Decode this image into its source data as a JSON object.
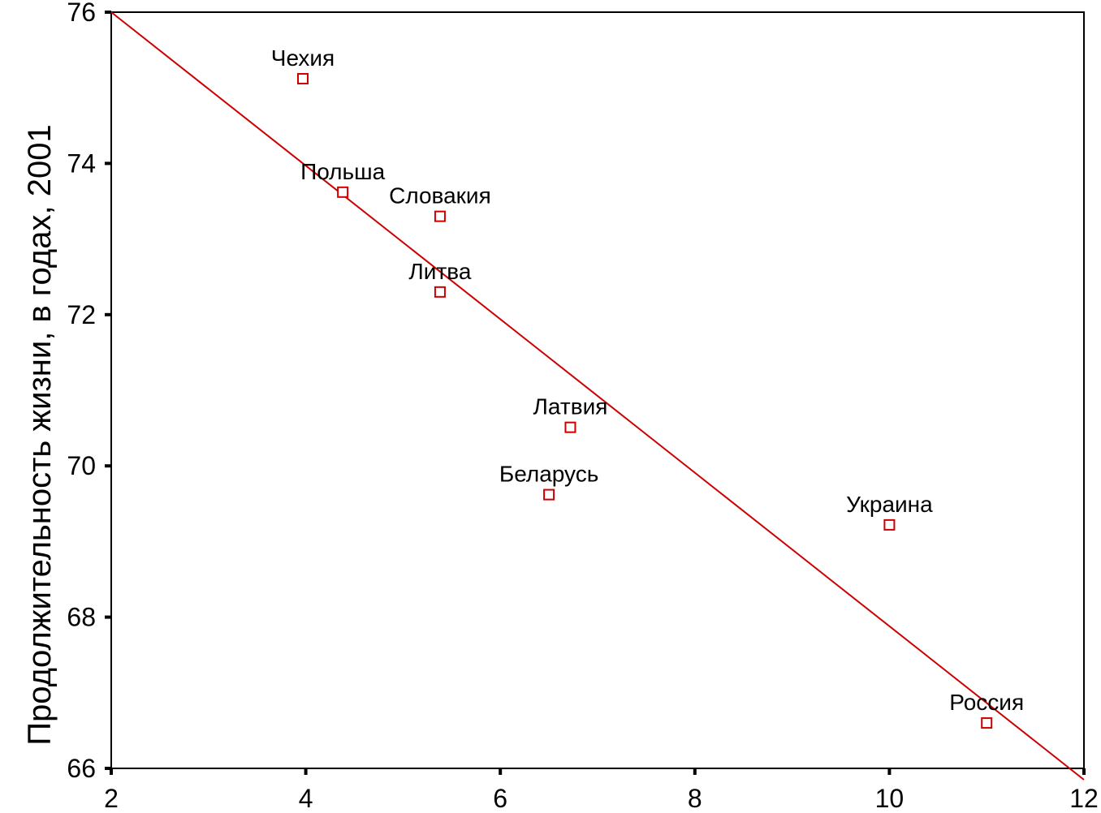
{
  "chart_data": {
    "type": "scatter",
    "title": "",
    "xlabel": "",
    "ylabel": "Продолжительность жизни, в годах, 2001",
    "xlim": [
      2,
      12
    ],
    "ylim": [
      66,
      76
    ],
    "x_ticks": [
      "2",
      "4",
      "6",
      "8",
      "10",
      "12"
    ],
    "y_ticks": [
      "66",
      "68",
      "70",
      "72",
      "74",
      "76"
    ],
    "grid": false,
    "legend": "none",
    "colors": {
      "points": "#cc0000",
      "fit_line": "#cc0000",
      "axes": "#000000"
    },
    "points": [
      {
        "label": "Чехия",
        "x": 3.97,
        "y": 75.12
      },
      {
        "label": "Польша",
        "x": 4.38,
        "y": 73.62
      },
      {
        "label": "Словакия",
        "x": 5.38,
        "y": 73.3
      },
      {
        "label": "Литва",
        "x": 5.38,
        "y": 72.3
      },
      {
        "label": "Латвия",
        "x": 6.72,
        "y": 70.51
      },
      {
        "label": "Беларусь",
        "x": 6.5,
        "y": 69.62
      },
      {
        "label": "Украина",
        "x": 10.0,
        "y": 69.22
      },
      {
        "label": "Россия",
        "x": 11.0,
        "y": 66.6
      }
    ],
    "fit_line": {
      "from": [
        2,
        76
      ],
      "to": [
        12,
        65.85
      ]
    }
  }
}
